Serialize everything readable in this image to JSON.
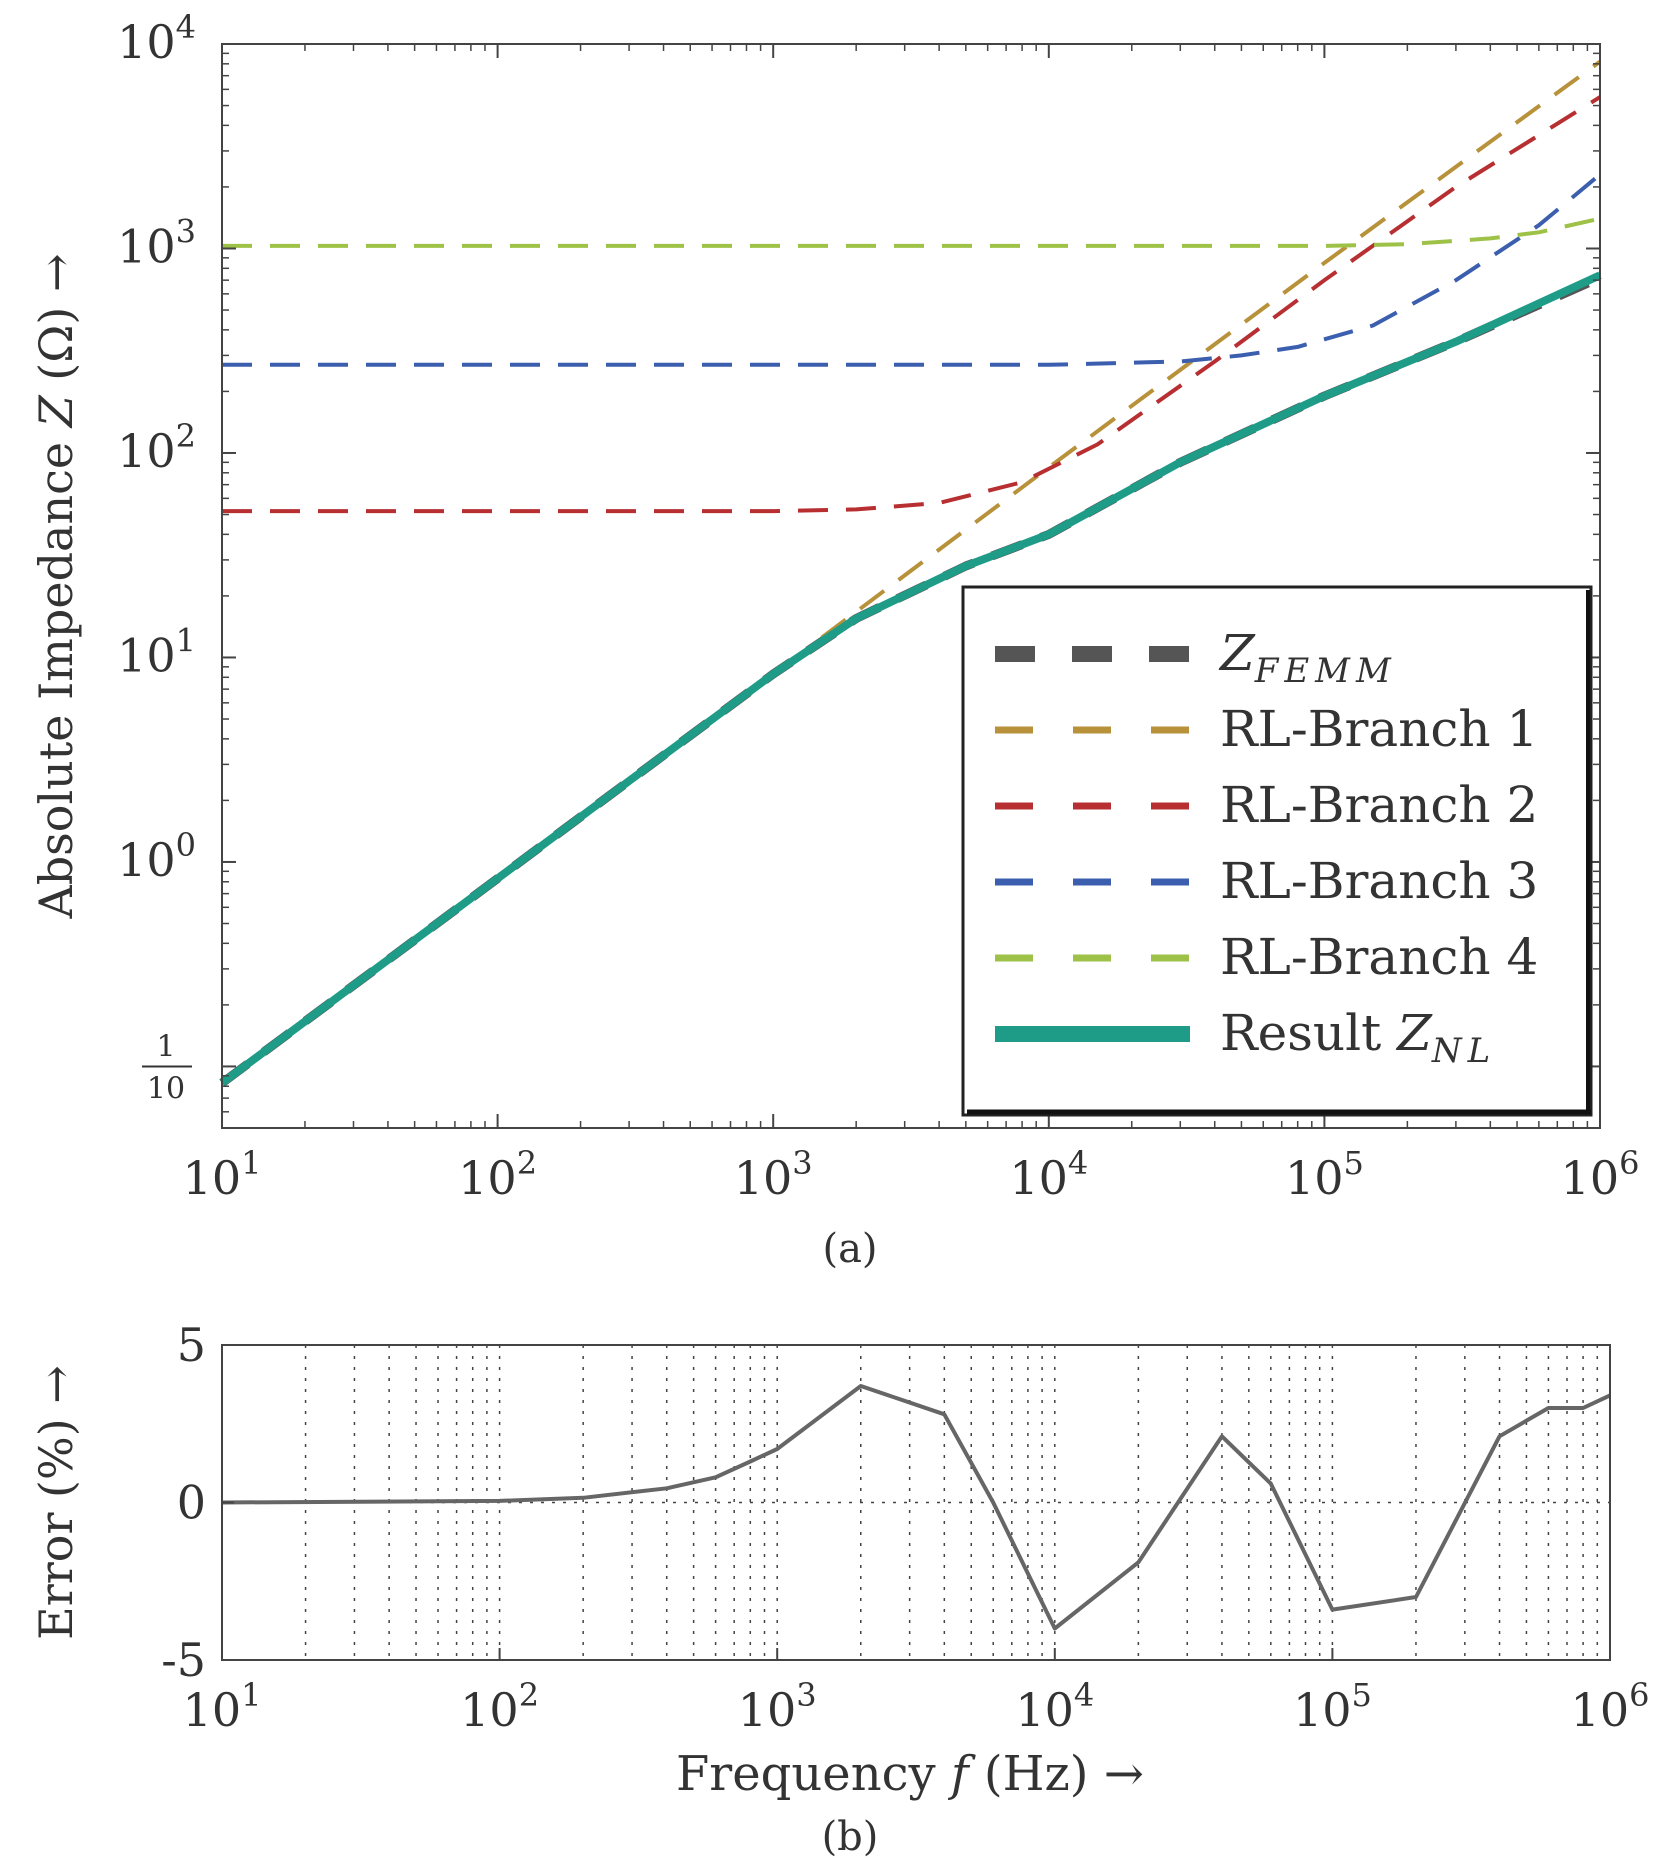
{
  "chart_data": [
    {
      "panel": "(a)",
      "type": "line",
      "scale": "log-log",
      "xlim": [
        10,
        1000000
      ],
      "ylim": [
        0.05,
        10000
      ],
      "ylabel": {
        "text": "Absolute Impedance ",
        "var": "Z",
        "unit": " (Ω) →"
      },
      "xticks": [
        {
          "value": 10,
          "base": "10",
          "exp": "1"
        },
        {
          "value": 100,
          "base": "10",
          "exp": "2"
        },
        {
          "value": 1000,
          "base": "10",
          "exp": "3"
        },
        {
          "value": 10000,
          "base": "10",
          "exp": "4"
        },
        {
          "value": 100000,
          "base": "10",
          "exp": "5"
        },
        {
          "value": 1000000,
          "base": "10",
          "exp": "6"
        }
      ],
      "yticks": [
        {
          "value": 0.1,
          "num": "1",
          "den": "10",
          "fraction": true
        },
        {
          "value": 1,
          "base": "10",
          "exp": "0"
        },
        {
          "value": 10,
          "base": "10",
          "exp": "1"
        },
        {
          "value": 100,
          "base": "10",
          "exp": "2"
        },
        {
          "value": 1000,
          "base": "10",
          "exp": "3"
        },
        {
          "value": 10000,
          "base": "10",
          "exp": "4"
        }
      ],
      "series": [
        {
          "id": "femm",
          "name": "Z",
          "sub": "FEMM",
          "color": "#555555",
          "style": "dashed",
          "x": [
            10,
            100,
            1000,
            2000,
            5000,
            10000,
            30000,
            100000,
            300000,
            1000000
          ],
          "y": [
            0.083,
            0.83,
            8.3,
            15.5,
            28.0,
            40.0,
            90.0,
            190.0,
            350.0,
            720.0
          ]
        },
        {
          "id": "rl1",
          "name": "RL-Branch 1",
          "color": "#b8923a",
          "style": "dashed",
          "x": [
            1500,
            10000,
            100000,
            1000000
          ],
          "y": [
            12.5,
            85.0,
            850.0,
            8200.0
          ]
        },
        {
          "id": "rl2",
          "name": "RL-Branch 2",
          "color": "#b82f32",
          "style": "dashed",
          "x": [
            10,
            1000,
            2000,
            4000,
            8000,
            15000,
            40000,
            100000,
            300000,
            1000000
          ],
          "y": [
            52.0,
            52.0,
            53.0,
            57.0,
            72.0,
            110.0,
            280.0,
            700.0,
            2000.0,
            5500.0
          ]
        },
        {
          "id": "rl3",
          "name": "RL-Branch 3",
          "color": "#3b5fae",
          "style": "dashed",
          "x": [
            10,
            10000,
            30000,
            50000,
            80000,
            150000,
            300000,
            600000,
            1000000
          ],
          "y": [
            270.0,
            270.0,
            280.0,
            300.0,
            330.0,
            420.0,
            700.0,
            1300.0,
            2300.0
          ]
        },
        {
          "id": "rl4",
          "name": "RL-Branch 4",
          "color": "#9ec248",
          "style": "dashed",
          "x": [
            10,
            100000,
            200000,
            400000,
            600000,
            1000000
          ],
          "y": [
            1030.0,
            1030.0,
            1050.0,
            1120.0,
            1200.0,
            1400.0
          ]
        },
        {
          "id": "result",
          "name": "Result ",
          "sub": "NL",
          "var": "Z",
          "color": "#1e9c88",
          "style": "solid",
          "x": [
            10,
            100,
            1000,
            2000,
            5000,
            10000,
            30000,
            100000,
            300000,
            1000000
          ],
          "y": [
            0.083,
            0.83,
            8.3,
            15.5,
            28.0,
            40.0,
            90.0,
            190.0,
            350.0,
            740.0
          ]
        }
      ],
      "legend": "bottom-right",
      "caption": "(a)"
    },
    {
      "panel": "(b)",
      "type": "line",
      "scale": "semilog-x",
      "xlim": [
        10,
        1000000
      ],
      "ylim": [
        -5,
        5
      ],
      "grid": true,
      "xlabel": {
        "text": "Frequency ",
        "var": "f",
        "unit": " (Hz) →"
      },
      "ylabel": "Error (%) →",
      "xticks": [
        {
          "value": 10,
          "base": "10",
          "exp": "1"
        },
        {
          "value": 100,
          "base": "10",
          "exp": "2"
        },
        {
          "value": 1000,
          "base": "10",
          "exp": "3"
        },
        {
          "value": 10000,
          "base": "10",
          "exp": "4"
        },
        {
          "value": 100000,
          "base": "10",
          "exp": "5"
        },
        {
          "value": 1000000,
          "base": "10",
          "exp": "6"
        }
      ],
      "yticks": [
        {
          "value": 5,
          "label": "5"
        },
        {
          "value": 0,
          "label": "0"
        },
        {
          "value": -5,
          "label": "-5"
        }
      ],
      "series": [
        {
          "name": "Error",
          "color": "#666666",
          "x": [
            10,
            100,
            200,
            400,
            600,
            800,
            1000,
            2000,
            4000,
            6000,
            10000,
            20000,
            40000,
            60000,
            100000,
            200000,
            400000,
            600000,
            800000,
            1000000
          ],
          "y": [
            0.0,
            0.05,
            0.15,
            0.45,
            0.8,
            1.3,
            1.7,
            3.7,
            2.8,
            0.0,
            -4.0,
            -1.9,
            2.1,
            0.6,
            -3.4,
            -3.0,
            2.1,
            3.0,
            3.0,
            3.4
          ]
        }
      ],
      "caption": "(b)"
    }
  ]
}
